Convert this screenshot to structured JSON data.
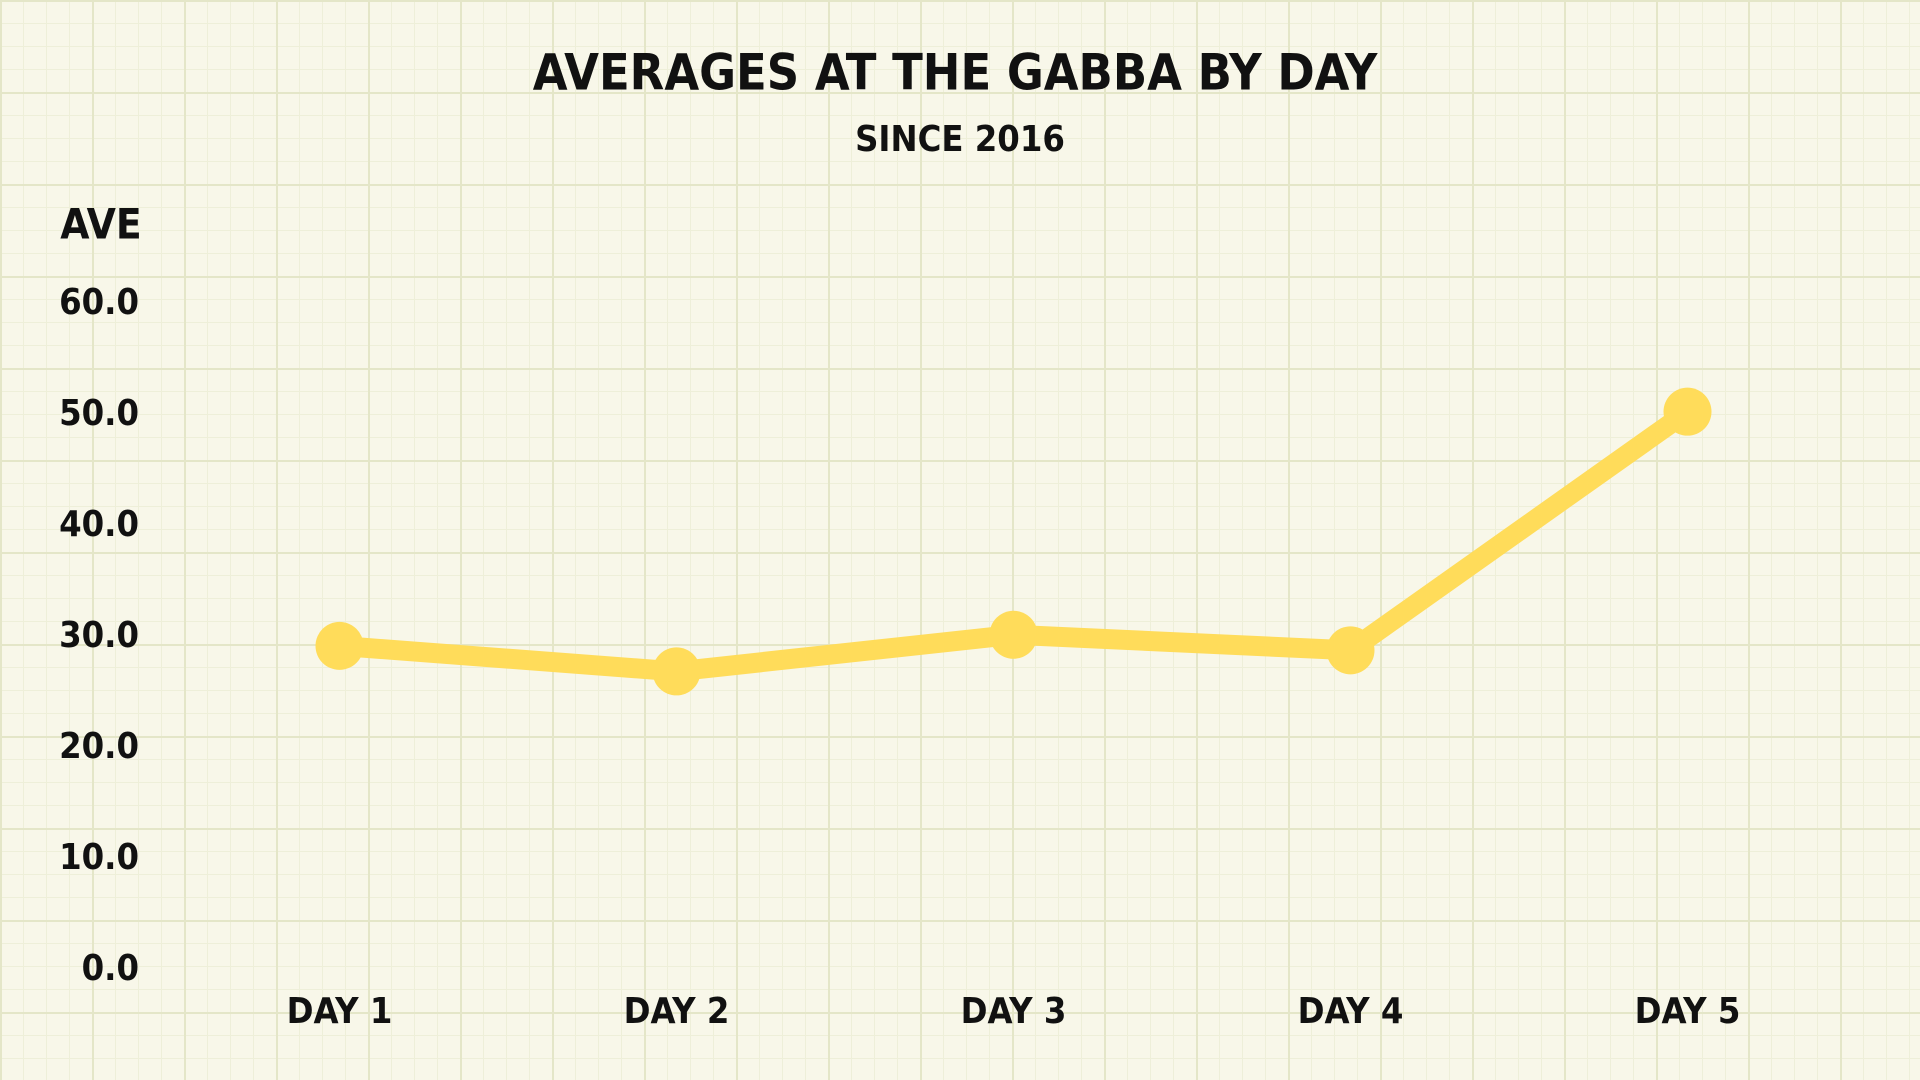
{
  "chart_data": {
    "type": "line",
    "title": "AVERAGES AT THE GABBA BY DAY",
    "subtitle": "SINCE 2016",
    "y_label": "AVE",
    "categories": [
      "DAY 1",
      "DAY 2",
      "DAY 3",
      "DAY 4",
      "DAY 5"
    ],
    "values": [
      29.2,
      26.9,
      30.2,
      28.8,
      50.3
    ],
    "color": "#ffdc5a",
    "ylim": [
      0,
      60
    ],
    "yticks": [
      {
        "value": 0,
        "label": "0.0"
      },
      {
        "value": 10,
        "label": "10.0"
      },
      {
        "value": 20,
        "label": "20.0"
      },
      {
        "value": 30,
        "label": "30.0"
      },
      {
        "value": 40,
        "label": "40.0"
      },
      {
        "value": 50,
        "label": "50.0"
      },
      {
        "value": 60,
        "label": "60.0"
      }
    ]
  }
}
